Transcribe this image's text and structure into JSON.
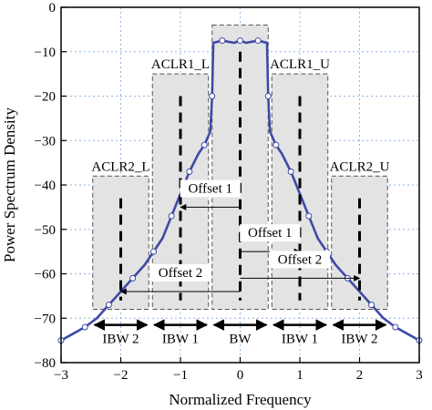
{
  "chart_data": {
    "type": "line",
    "title": "",
    "xlabel": "Normalized Frequency",
    "ylabel": "Power Spectrum Density",
    "xlim": [
      -3,
      3
    ],
    "ylim": [
      -80,
      0
    ],
    "xticks": [
      -3,
      -2,
      -1,
      0,
      1,
      2,
      3
    ],
    "yticks": [
      0,
      -10,
      -20,
      -30,
      -40,
      -50,
      -60,
      -70,
      -80
    ],
    "xtick_labels": [
      "−3",
      "−2",
      "−1",
      "0",
      "1",
      "2",
      "3"
    ],
    "ytick_labels": [
      "0",
      "−10",
      "−20",
      "−30",
      "−40",
      "−50",
      "−60",
      "−70",
      "−80"
    ],
    "grid": true,
    "series_color": "#3f4aa6",
    "series": [
      {
        "x": [
          -3.0,
          -2.8,
          -2.6,
          -2.4,
          -2.2,
          -2.0,
          -1.8,
          -1.6,
          -1.45,
          -1.3,
          -1.15,
          -1.0,
          -0.85,
          -0.7,
          -0.6,
          -0.5,
          -0.47,
          -0.45,
          -0.3,
          -0.1,
          0.0,
          0.1,
          0.3,
          0.45,
          0.47,
          0.5,
          0.6,
          0.7,
          0.85,
          1.0,
          1.15,
          1.3,
          1.45,
          1.6,
          1.8,
          2.0,
          2.2,
          2.4,
          2.6,
          2.8,
          3.0
        ],
        "y": [
          -75,
          -73.5,
          -72,
          -70,
          -67,
          -64,
          -61,
          -58,
          -55,
          -52,
          -47,
          -42,
          -37,
          -33,
          -31,
          -28,
          -20,
          -8,
          -7.5,
          -8,
          -7.5,
          -8,
          -7.5,
          -8,
          -20,
          -28,
          -31,
          -33,
          -37,
          -42,
          -47,
          -52,
          -55,
          -58,
          -61,
          -64,
          -67,
          -70,
          -72,
          -73.5,
          -75
        ]
      }
    ],
    "regions": [
      {
        "label": "ACLR2_L",
        "x": [
          -2.5,
          -1.5
        ],
        "y": [
          -38,
          -68
        ],
        "marker_x": -2
      },
      {
        "label": "ACLR1_L",
        "x": [
          -1.5,
          -0.5
        ],
        "y": [
          -15,
          -68
        ],
        "marker_x": -1
      },
      {
        "label": "",
        "x": [
          -0.5,
          0.5
        ],
        "y": [
          -4,
          -68
        ],
        "marker_x": 0
      },
      {
        "label": "ACLR1_U",
        "x": [
          0.5,
          1.5
        ],
        "y": [
          -15,
          -68
        ],
        "marker_x": 1
      },
      {
        "label": "ACLR2_U",
        "x": [
          1.5,
          2.5
        ],
        "y": [
          -38,
          -68
        ],
        "marker_x": 2
      }
    ],
    "bandwidths": [
      {
        "label": "IBW 2",
        "x": [
          -2.5,
          -1.5
        ]
      },
      {
        "label": "IBW 1",
        "x": [
          -1.5,
          -0.5
        ]
      },
      {
        "label": "BW",
        "x": [
          -0.5,
          0.5
        ]
      },
      {
        "label": "IBW 1",
        "x": [
          0.5,
          1.5
        ]
      },
      {
        "label": "IBW 2",
        "x": [
          1.5,
          2.5
        ]
      }
    ],
    "offsets": [
      {
        "label": "Offset 1",
        "from": 0,
        "to": -1,
        "y": -45
      },
      {
        "label": "Offset 1",
        "from": 0,
        "to": 1,
        "y": -55
      },
      {
        "label": "Offset 2",
        "from": 0,
        "to": -2,
        "y": -64
      },
      {
        "label": "Offset 2",
        "from": 0,
        "to": 2,
        "y": -61
      }
    ]
  }
}
